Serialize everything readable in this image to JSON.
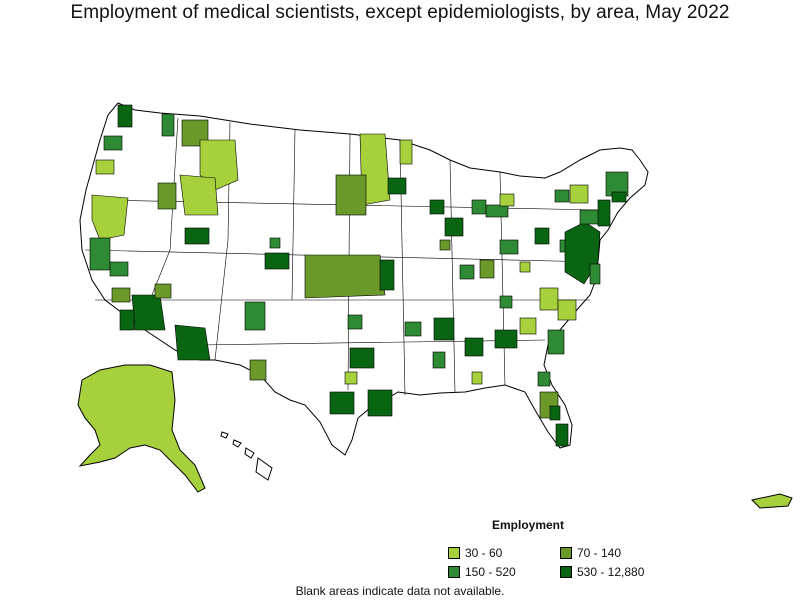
{
  "title": "Employment of medical scientists, except epidemiologists, by area, May 2022",
  "legend": {
    "title": "Employment",
    "items": [
      {
        "label": "30 - 60",
        "color": "#a6d03c"
      },
      {
        "label": "70 - 140",
        "color": "#6b9a2a"
      },
      {
        "label": "150 - 520",
        "color": "#2f8a35"
      },
      {
        "label": "530 - 12,880",
        "color": "#0a6512"
      }
    ]
  },
  "note": "Blank areas indicate data not available.",
  "colors": {
    "outline": "#000000",
    "blank": "#ffffff",
    "c1": "#a6d03c",
    "c2": "#6b9a2a",
    "c3": "#2f8a35",
    "c4": "#0a6512"
  }
}
